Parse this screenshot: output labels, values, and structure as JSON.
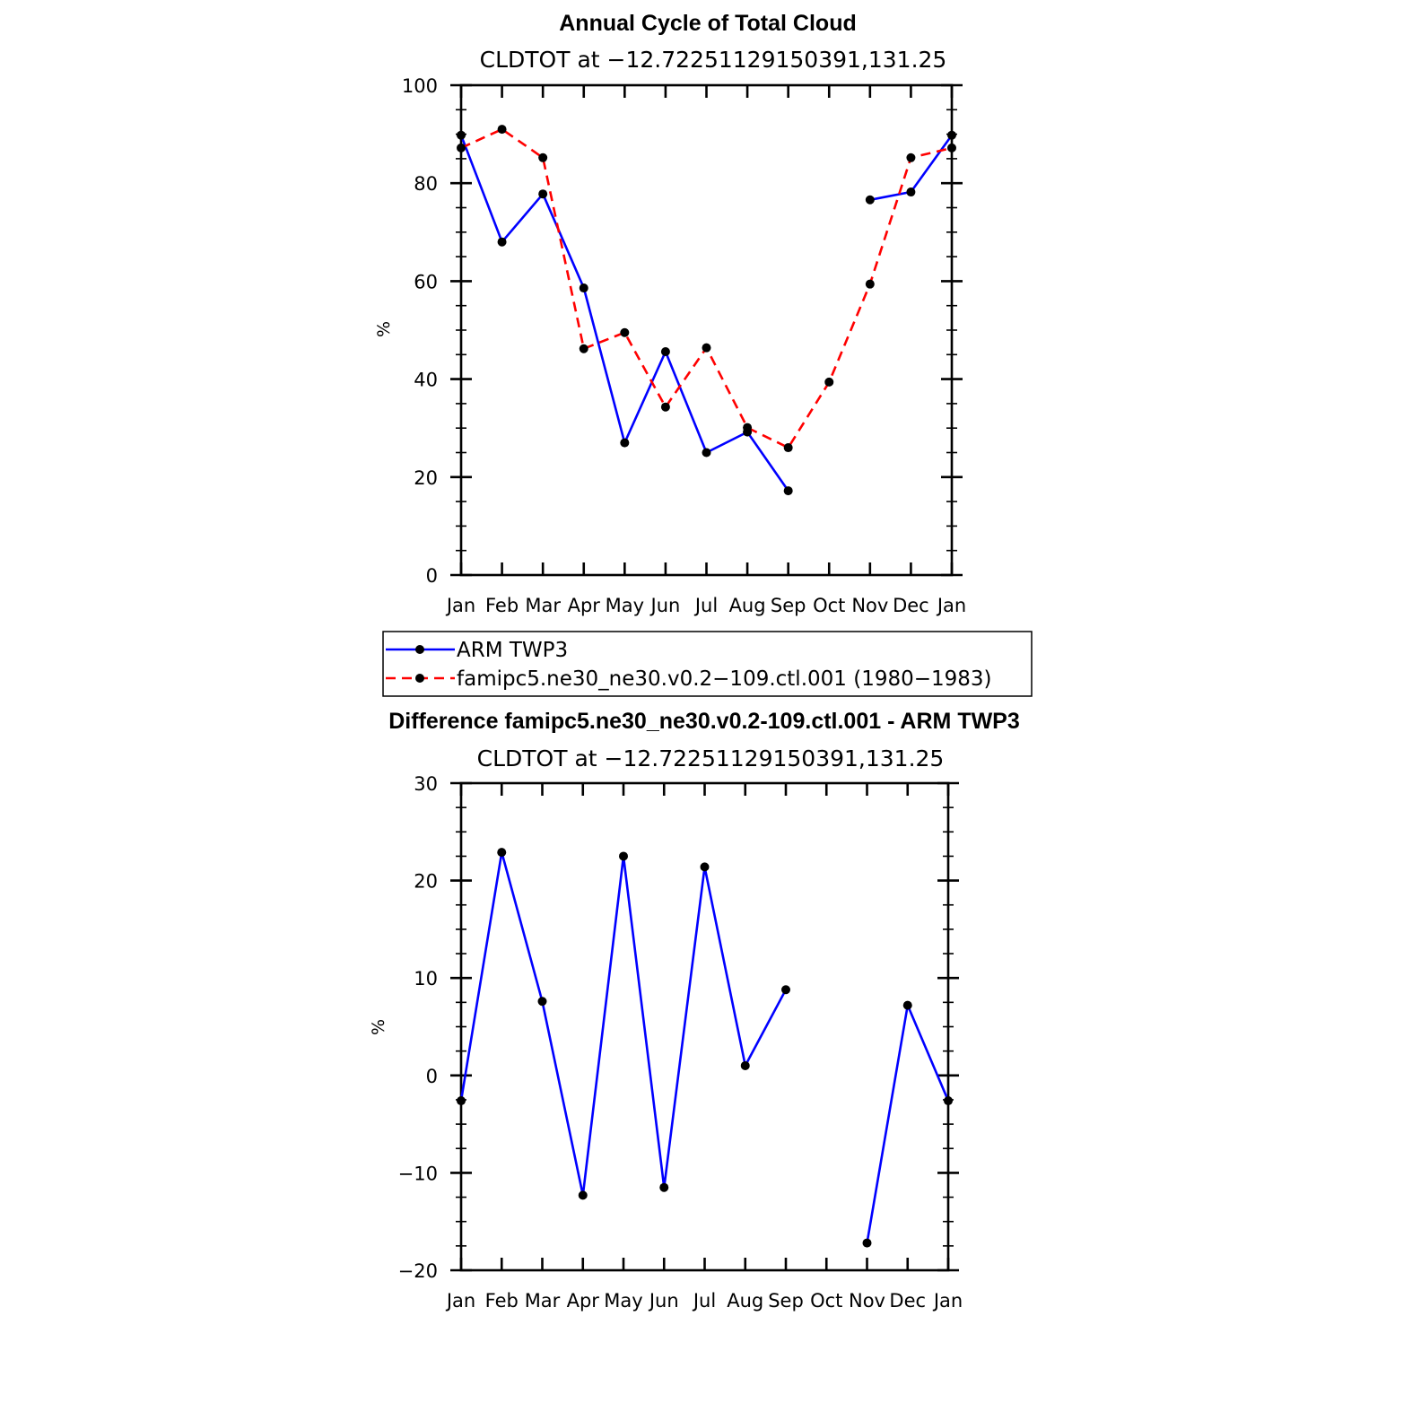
{
  "chart_data": [
    {
      "type": "line",
      "title": "Annual Cycle of Total Cloud",
      "subtitle": "CLDTOT at −12.72251129150391,131.25",
      "xlabel": "",
      "ylabel": "%",
      "categories": [
        "Jan",
        "Feb",
        "Mar",
        "Apr",
        "May",
        "Jun",
        "Jul",
        "Aug",
        "Sep",
        "Oct",
        "Nov",
        "Dec",
        "Jan"
      ],
      "ylim": [
        0,
        100
      ],
      "yticks": [
        "0",
        "20",
        "40",
        "60",
        "80",
        "100"
      ],
      "series": [
        {
          "name": "ARM TWP3",
          "color": "#0000ff",
          "dash": false,
          "values": [
            89.8,
            68.0,
            77.8,
            58.6,
            27.0,
            45.6,
            25.0,
            29.2,
            17.2,
            null,
            76.6,
            78.2,
            89.8
          ]
        },
        {
          "name": "famipc5.ne30_ne30.v0.2−109.ctl.001 (1980−1983)",
          "color": "#ff0000",
          "dash": true,
          "values": [
            87.2,
            91.0,
            85.2,
            46.2,
            49.5,
            34.3,
            46.4,
            30.1,
            26.0,
            39.4,
            59.4,
            85.2,
            87.2
          ]
        }
      ]
    },
    {
      "type": "line",
      "title": "Difference famipc5.ne30_ne30.v0.2-109.ctl.001 - ARM TWP3",
      "subtitle": "CLDTOT at −12.72251129150391,131.25",
      "xlabel": "",
      "ylabel": "%",
      "categories": [
        "Jan",
        "Feb",
        "Mar",
        "Apr",
        "May",
        "Jun",
        "Jul",
        "Aug",
        "Sep",
        "Oct",
        "Nov",
        "Dec",
        "Jan"
      ],
      "ylim": [
        -20,
        30
      ],
      "yticks": [
        "−20",
        "−10",
        "0",
        "10",
        "20",
        "30"
      ],
      "series": [
        {
          "name": "difference",
          "color": "#0000ff",
          "dash": false,
          "values": [
            -2.6,
            22.9,
            7.6,
            -12.3,
            22.5,
            -11.5,
            21.4,
            1.0,
            8.8,
            null,
            -17.2,
            7.2,
            -2.6
          ]
        }
      ]
    }
  ]
}
